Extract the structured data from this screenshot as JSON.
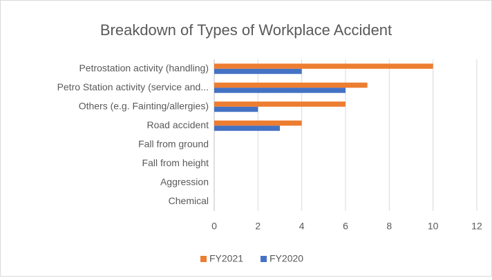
{
  "chart_data": {
    "type": "bar",
    "orientation": "horizontal",
    "title": "Breakdown of Types of Workplace Accident",
    "categories": [
      "Petrostation activity (handling)",
      "Petro Station activity (service and...",
      "Others (e.g. Fainting/allergies)",
      "Road accident",
      "Fall from ground",
      "Fall from height",
      "Aggression",
      "Chemical"
    ],
    "series": [
      {
        "name": "FY2021",
        "color": "#ed7d31",
        "values": [
          10,
          7,
          6,
          4,
          0,
          0,
          0,
          0
        ]
      },
      {
        "name": "FY2020",
        "color": "#4472c4",
        "values": [
          4,
          6,
          2,
          3,
          0,
          0,
          0,
          0
        ]
      }
    ],
    "xlim": [
      0,
      12
    ],
    "xticks": [
      0,
      2,
      4,
      6,
      8,
      10,
      12
    ],
    "grid": true,
    "legend": "bottom"
  }
}
